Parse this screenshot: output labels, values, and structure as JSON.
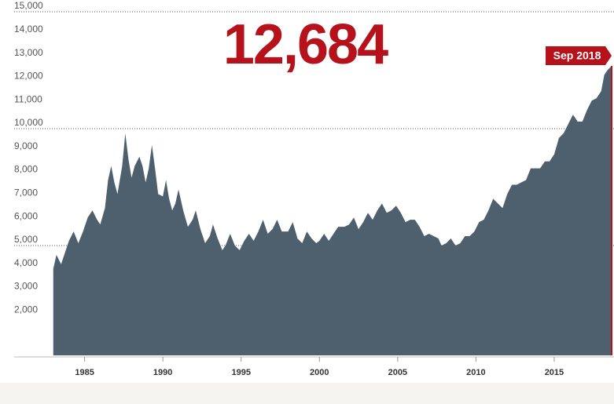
{
  "chart_data": {
    "type": "area",
    "headline": "12,684",
    "last_label": "Sep 2018",
    "color": "#4e5f6d",
    "highlight_color": "#b5121b",
    "xlim": [
      1980.5,
      2018.82
    ],
    "ylim": [
      300,
      15000
    ],
    "xticks": [
      1985,
      1990,
      1995,
      2000,
      2005,
      2010,
      2015
    ],
    "yticks": [
      {
        "value": 2000,
        "label": "2,000"
      },
      {
        "value": 3000,
        "label": "3,000"
      },
      {
        "value": 4000,
        "label": "4,000"
      },
      {
        "value": 5000,
        "label": "5,000"
      },
      {
        "value": 6000,
        "label": "6,000"
      },
      {
        "value": 7000,
        "label": "7,000"
      },
      {
        "value": 8000,
        "label": "8,000"
      },
      {
        "value": 9000,
        "label": "9,000"
      },
      {
        "value": 10000,
        "label": "10,000"
      },
      {
        "value": 11000,
        "label": "11,000"
      },
      {
        "value": 12000,
        "label": "12,000"
      },
      {
        "value": 13000,
        "label": "13,000"
      },
      {
        "value": 14000,
        "label": "14,000"
      },
      {
        "value": 15000,
        "label": "15,000"
      }
    ],
    "gridlines": [
      5000,
      10000,
      15000
    ],
    "x": [
      1983.0,
      1983.2,
      1983.5,
      1983.8,
      1984.0,
      1984.3,
      1984.6,
      1984.9,
      1985.2,
      1985.5,
      1985.8,
      1986.0,
      1986.3,
      1986.5,
      1986.7,
      1986.9,
      1987.1,
      1987.4,
      1987.6,
      1987.8,
      1988.0,
      1988.2,
      1988.5,
      1988.7,
      1988.9,
      1989.1,
      1989.3,
      1989.5,
      1989.7,
      1990.0,
      1990.2,
      1990.4,
      1990.6,
      1990.8,
      1991.0,
      1991.3,
      1991.6,
      1991.9,
      1992.1,
      1992.4,
      1992.7,
      1993.0,
      1993.2,
      1993.5,
      1993.8,
      1994.0,
      1994.3,
      1994.6,
      1994.9,
      1995.2,
      1995.5,
      1995.8,
      1996.1,
      1996.4,
      1996.7,
      1997.0,
      1997.3,
      1997.6,
      1998.0,
      1998.3,
      1998.6,
      1998.9,
      1999.2,
      1999.5,
      1999.8,
      2000.0,
      2000.3,
      2000.6,
      2000.9,
      2001.2,
      2001.6,
      2001.9,
      2002.2,
      2002.5,
      2002.8,
      2003.1,
      2003.4,
      2003.7,
      2004.0,
      2004.3,
      2004.6,
      2004.9,
      2005.2,
      2005.5,
      2005.8,
      2006.1,
      2006.4,
      2006.7,
      2007.0,
      2007.3,
      2007.6,
      2007.8,
      2008.1,
      2008.4,
      2008.7,
      2009.0,
      2009.3,
      2009.6,
      2009.9,
      2010.2,
      2010.5,
      2010.8,
      2011.1,
      2011.4,
      2011.7,
      2012.0,
      2012.3,
      2012.6,
      2012.9,
      2013.2,
      2013.5,
      2013.8,
      2014.1,
      2014.4,
      2014.7,
      2015.0,
      2015.3,
      2015.6,
      2015.9,
      2016.2,
      2016.5,
      2016.8,
      2017.1,
      2017.4,
      2017.7,
      2018.0,
      2018.2,
      2018.4,
      2018.67
    ],
    "values": [
      4000,
      4600,
      4200,
      4800,
      5200,
      5600,
      5100,
      5600,
      6200,
      6500,
      6100,
      5900,
      6600,
      7800,
      8400,
      7700,
      7200,
      8400,
      9800,
      8700,
      7900,
      8400,
      8800,
      8400,
      7700,
      8300,
      9300,
      8300,
      7200,
      7100,
      7800,
      7000,
      6500,
      6800,
      7400,
      6500,
      5800,
      6100,
      6500,
      5700,
      5100,
      5400,
      5900,
      5300,
      4800,
      5000,
      5500,
      5000,
      4800,
      5200,
      5500,
      5200,
      5600,
      6100,
      5500,
      5700,
      6100,
      5600,
      5600,
      6000,
      5300,
      5100,
      5600,
      5300,
      5100,
      5200,
      5500,
      5200,
      5500,
      5800,
      5800,
      5900,
      6200,
      5700,
      6000,
      6400,
      6100,
      6500,
      6800,
      6400,
      6500,
      6700,
      6400,
      6000,
      6100,
      6100,
      5800,
      5400,
      5500,
      5400,
      5300,
      5000,
      5100,
      5300,
      5000,
      5100,
      5400,
      5400,
      5600,
      6000,
      6100,
      6500,
      7000,
      6800,
      6600,
      7200,
      7600,
      7600,
      7700,
      7800,
      8300,
      8300,
      8300,
      8600,
      8600,
      8900,
      9600,
      9800,
      10200,
      10600,
      10300,
      10300,
      10800,
      11200,
      11300,
      11600,
      12300,
      12500,
      12684
    ]
  }
}
